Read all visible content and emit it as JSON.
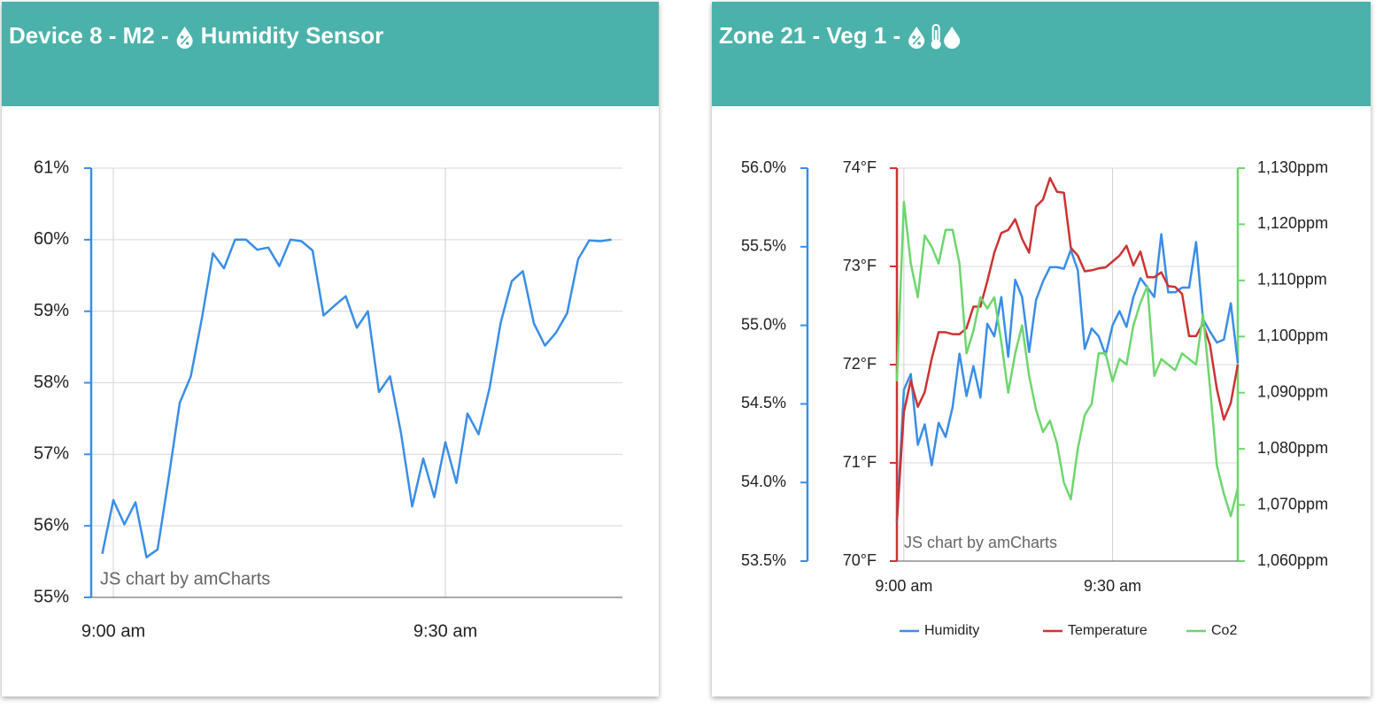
{
  "chart_data": [
    {
      "type": "line",
      "title": "Device 8 - M2 -",
      "sensor": "Humidity Sensor",
      "credit": "JS chart by amCharts",
      "x": [
        "8:59",
        "9:00",
        "9:01",
        "9:02",
        "9:03",
        "9:04",
        "9:05",
        "9:06",
        "9:07",
        "9:08",
        "9:09",
        "9:10",
        "9:11",
        "9:12",
        "9:13",
        "9:14",
        "9:15",
        "9:16",
        "9:17",
        "9:18",
        "9:19",
        "9:20",
        "9:21",
        "9:22",
        "9:23",
        "9:24",
        "9:25",
        "9:26",
        "9:27",
        "9:28",
        "9:29",
        "9:30",
        "9:31",
        "9:32",
        "9:33",
        "9:34",
        "9:35",
        "9:36",
        "9:37",
        "9:38",
        "9:39",
        "9:40",
        "9:41",
        "9:42",
        "9:43",
        "9:44",
        "9:45"
      ],
      "values": [
        55.61,
        56.36,
        56.02,
        56.33,
        55.56,
        55.67,
        56.67,
        57.72,
        58.09,
        58.9,
        59.81,
        59.6,
        60,
        60,
        59.86,
        59.89,
        59.63,
        60,
        59.98,
        59.85,
        58.94,
        59.08,
        59.21,
        58.77,
        59,
        57.87,
        58.09,
        57.29,
        56.27,
        56.94,
        56.4,
        57.17,
        56.6,
        57.57,
        57.28,
        57.93,
        58.84,
        59.42,
        59.56,
        58.83,
        58.52,
        58.7,
        58.97,
        59.73,
        59.99,
        59.98,
        60
      ],
      "color": "#3a8ee6",
      "xlim": [
        "8:58",
        "9:46"
      ],
      "xticks": [
        {
          "value": "9:00",
          "label": "9:00 am"
        },
        {
          "value": "9:30",
          "label": "9:30 am"
        }
      ],
      "ylim": [
        55,
        61
      ],
      "yticks": [
        {
          "value": 55,
          "label": "55%"
        },
        {
          "value": 56,
          "label": "56%"
        },
        {
          "value": 57,
          "label": "57%"
        },
        {
          "value": 58,
          "label": "58%"
        },
        {
          "value": 59,
          "label": "59%"
        },
        {
          "value": 60,
          "label": "60%"
        },
        {
          "value": 61,
          "label": "61%"
        }
      ],
      "grid": [
        "x",
        "y"
      ]
    },
    {
      "type": "line",
      "title": "Zone 21 - Veg 1 -",
      "credit": "JS chart by amCharts",
      "x": [
        "8:59",
        "9:00",
        "9:01",
        "9:02",
        "9:03",
        "9:04",
        "9:05",
        "9:06",
        "9:07",
        "9:08",
        "9:09",
        "9:10",
        "9:11",
        "9:12",
        "9:13",
        "9:14",
        "9:15",
        "9:16",
        "9:17",
        "9:18",
        "9:19",
        "9:20",
        "9:21",
        "9:22",
        "9:23",
        "9:24",
        "9:25",
        "9:26",
        "9:27",
        "9:28",
        "9:29",
        "9:30",
        "9:31",
        "9:32",
        "9:33",
        "9:34",
        "9:35",
        "9:36",
        "9:37",
        "9:38",
        "9:39",
        "9:40",
        "9:41",
        "9:42",
        "9:43",
        "9:44",
        "9:45",
        "9:46",
        "9:47",
        "9:48"
      ],
      "series": [
        {
          "name": "Humidity",
          "color": "#3a8ee6",
          "values": [
            53.75,
            54.59,
            54.69,
            54.24,
            54.37,
            54.11,
            54.38,
            54.29,
            54.48,
            54.82,
            54.55,
            54.74,
            54.54,
            55.01,
            54.93,
            55.18,
            54.8,
            55.29,
            55.18,
            54.83,
            55.16,
            55.28,
            55.37,
            55.37,
            55.36,
            55.48,
            55.35,
            54.85,
            54.98,
            54.93,
            54.81,
            55,
            55.09,
            54.99,
            55.18,
            55.3,
            55.24,
            55.18,
            55.58,
            55.21,
            55.21,
            55.24,
            55.24,
            55.53,
            55.04,
            54.96,
            54.89,
            54.91,
            55.14,
            54.76
          ]
        },
        {
          "name": "Temperature",
          "color": "#cc3333",
          "axis": "y2",
          "values": [
            70.41,
            71.52,
            71.84,
            71.57,
            71.72,
            72.06,
            72.33,
            72.33,
            72.31,
            72.31,
            72.37,
            72.59,
            72.59,
            72.85,
            73.14,
            73.34,
            73.37,
            73.48,
            73.28,
            73.14,
            73.61,
            73.68,
            73.9,
            73.76,
            73.75,
            73.19,
            73.11,
            72.95,
            72.96,
            72.98,
            72.99,
            73.05,
            73.11,
            73.21,
            73.01,
            73.15,
            72.89,
            72.89,
            72.94,
            72.8,
            72.79,
            72.72,
            72.29,
            72.29,
            72.42,
            72.2,
            71.75,
            71.44,
            71.61,
            72
          ]
        },
        {
          "name": "Co2",
          "color": "#6ed66e",
          "axis": "y3",
          "values": [
            1092,
            1124,
            1113,
            1107,
            1118,
            1116,
            1113,
            1119,
            1119,
            1113,
            1097,
            1101,
            1107,
            1105,
            1107,
            1099,
            1090,
            1097,
            1102,
            1093,
            1087,
            1083,
            1085,
            1081,
            1074,
            1071,
            1080,
            1086,
            1088,
            1097,
            1097,
            1092,
            1096,
            1095,
            1102,
            1106,
            1109,
            1093,
            1096,
            1095,
            1094,
            1097,
            1096,
            1095,
            1104,
            1091,
            1077,
            1072,
            1068,
            1073
          ]
        }
      ],
      "xlim": [
        "8:59",
        "9:48"
      ],
      "xticks": [
        {
          "value": "9:00",
          "label": "9:00 am"
        },
        {
          "value": "9:30",
          "label": "9:30 am"
        }
      ],
      "ylim": [
        53.5,
        56
      ],
      "yticks": [
        {
          "value": 53.5,
          "label": "53.5%"
        },
        {
          "value": 54,
          "label": "54.0%"
        },
        {
          "value": 54.5,
          "label": "54.5%"
        },
        {
          "value": 55,
          "label": "55.0%"
        },
        {
          "value": 55.5,
          "label": "55.5%"
        },
        {
          "value": 56,
          "label": "56.0%"
        }
      ],
      "y2lim": [
        70,
        74
      ],
      "y2ticks": [
        {
          "value": 70,
          "label": "70°F"
        },
        {
          "value": 71,
          "label": "71°F"
        },
        {
          "value": 72,
          "label": "72°F"
        },
        {
          "value": 73,
          "label": "73°F"
        },
        {
          "value": 74,
          "label": "74°F"
        }
      ],
      "y3lim": [
        1060,
        1130
      ],
      "y3ticks": [
        {
          "value": 1060,
          "label": "1,060ppm"
        },
        {
          "value": 1070,
          "label": "1,070ppm"
        },
        {
          "value": 1080,
          "label": "1,080ppm"
        },
        {
          "value": 1090,
          "label": "1,090ppm"
        },
        {
          "value": 1100,
          "label": "1,100ppm"
        },
        {
          "value": 1110,
          "label": "1,110ppm"
        },
        {
          "value": 1120,
          "label": "1,120ppm"
        },
        {
          "value": 1130,
          "label": "1,130ppm"
        }
      ],
      "grid": [
        "x",
        "y2"
      ]
    }
  ]
}
